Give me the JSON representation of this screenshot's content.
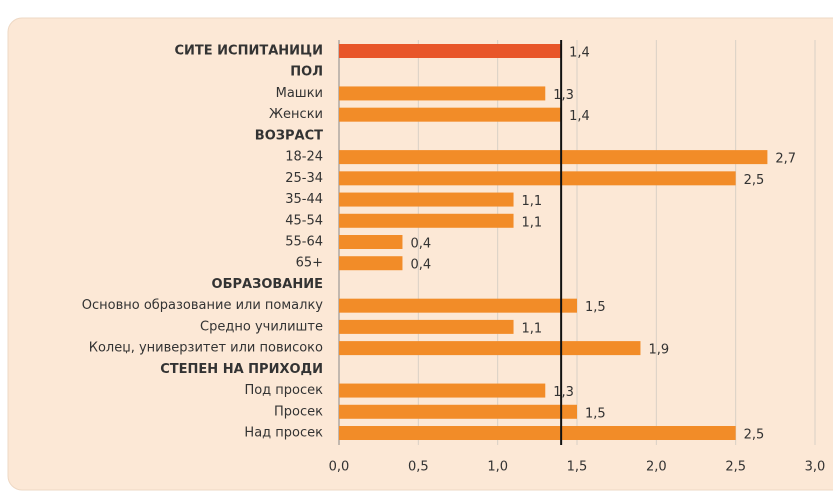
{
  "chart_data": {
    "type": "bar",
    "orientation": "horizontal",
    "categories": [
      "СИТЕ ИСПИТАНИЦИ",
      "ПОЛ",
      "Машки",
      "Женски",
      "ВОЗРАСТ",
      "18-24",
      "25-34",
      "35-44",
      "45-54",
      "55-64",
      "65+",
      "ОБРАЗОВАНИЕ",
      "Основно образование или помалку",
      "Средно училиште",
      "Колеџ, универзитет или повисоко",
      "СТЕПЕН НА ПРИХОДИ",
      "Под просек",
      "Просек",
      "Над просек"
    ],
    "values": [
      1.4,
      null,
      1.3,
      1.4,
      null,
      2.7,
      2.5,
      1.1,
      1.1,
      0.4,
      0.4,
      null,
      1.5,
      1.1,
      1.9,
      null,
      1.3,
      1.5,
      2.5
    ],
    "value_labels": [
      "1,4",
      null,
      "1,3",
      "1,4",
      null,
      "2,7",
      "2,5",
      "1,1",
      "1,1",
      "0,4",
      "0,4",
      null,
      "1,5",
      "1,1",
      "1,9",
      null,
      "1,3",
      "1,5",
      "2,5"
    ],
    "colors": [
      "#e8562a",
      null,
      "#f28c28",
      "#f28c28",
      null,
      "#f28c28",
      "#f28c28",
      "#f28c28",
      "#f28c28",
      "#f28c28",
      "#f28c28",
      null,
      "#f28c28",
      "#f28c28",
      "#f28c28",
      null,
      "#f28c28",
      "#f28c28",
      "#f28c28"
    ],
    "bold_categories": [
      0,
      1,
      4,
      11,
      15
    ],
    "reference_line": 1.4,
    "xlim": [
      0,
      3
    ],
    "xticks": [
      {
        "value": 0,
        "label": "0,0"
      },
      {
        "value": 0.5,
        "label": "0,5"
      },
      {
        "value": 1,
        "label": "1,0"
      },
      {
        "value": 1.5,
        "label": "1,5"
      },
      {
        "value": 2,
        "label": "2,0"
      },
      {
        "value": 2.5,
        "label": "2,5"
      },
      {
        "value": 3,
        "label": "3,0"
      }
    ],
    "grid": true
  }
}
